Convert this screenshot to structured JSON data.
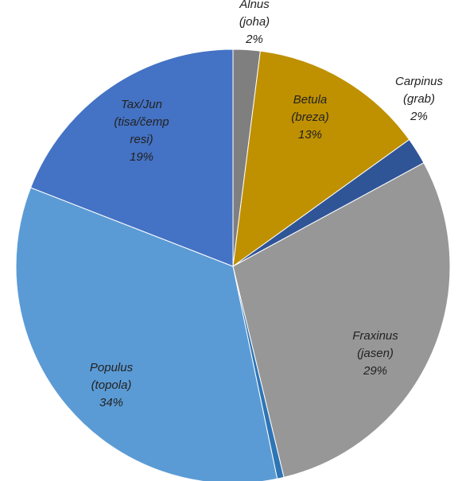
{
  "chart_data": {
    "type": "pie",
    "categories": [
      [
        "Alnus",
        "(joha)"
      ],
      [
        "Betula",
        "(breza)"
      ],
      [
        "Carpinus",
        "(grab)"
      ],
      [
        "Fraxinus",
        "(jasen)"
      ],
      null,
      [
        "Populus",
        "(topola)"
      ],
      [
        "Tax/Jun",
        "(tisa/čemp",
        "resi)"
      ]
    ],
    "values": [
      2,
      13,
      2,
      29,
      0.5,
      34,
      19
    ],
    "value_labels": [
      "2%",
      "13%",
      "2%",
      "29%",
      null,
      "34%",
      "19%"
    ],
    "colors": [
      "#7f7f7f",
      "#bf9000",
      "#2f5597",
      "#979797",
      "#2e75b6",
      "#5b9bd5",
      "#4472c4"
    ]
  }
}
